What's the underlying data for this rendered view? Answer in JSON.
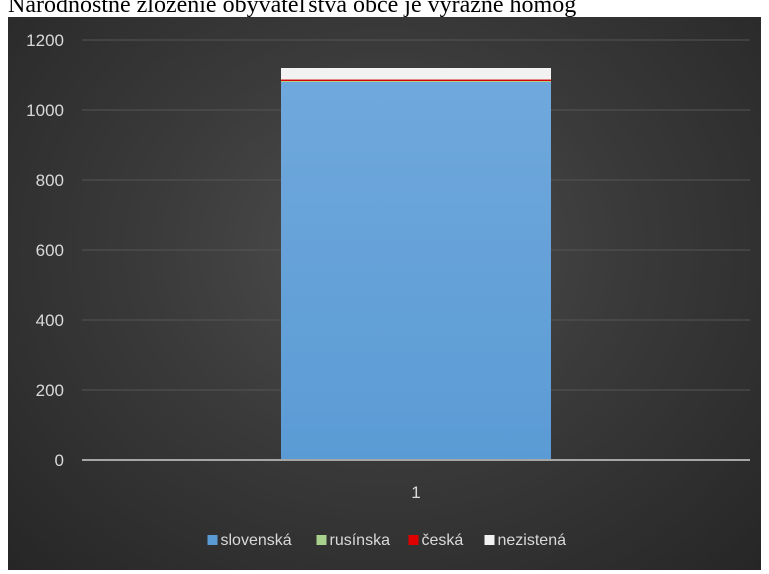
{
  "page_title": "Národnostné zloženie obyvateľstva obce je výrazne homog",
  "colors": {
    "slovenska": "#5b9bd5",
    "rusinska": "#a9d18e",
    "ceska": "#e00000",
    "nezistena": "#f2f2f2",
    "axis_line": "#a6a6a6",
    "grid": "#555555"
  },
  "chart_data": {
    "type": "bar",
    "stacked": true,
    "categories": [
      "1"
    ],
    "series": [
      {
        "name": "slovenská",
        "values": [
          1080
        ],
        "color": "#5b9bd5"
      },
      {
        "name": "rusínska",
        "values": [
          3
        ],
        "color": "#a9d18e"
      },
      {
        "name": "česká",
        "values": [
          4
        ],
        "color": "#e00000"
      },
      {
        "name": "nezistená",
        "values": [
          33
        ],
        "color": "#f2f2f2"
      }
    ],
    "ylim": [
      0,
      1200
    ],
    "yticks": [
      "0",
      "200",
      "400",
      "600",
      "800",
      "1000",
      "1200"
    ],
    "grid": true,
    "legend_position": "bottom"
  }
}
